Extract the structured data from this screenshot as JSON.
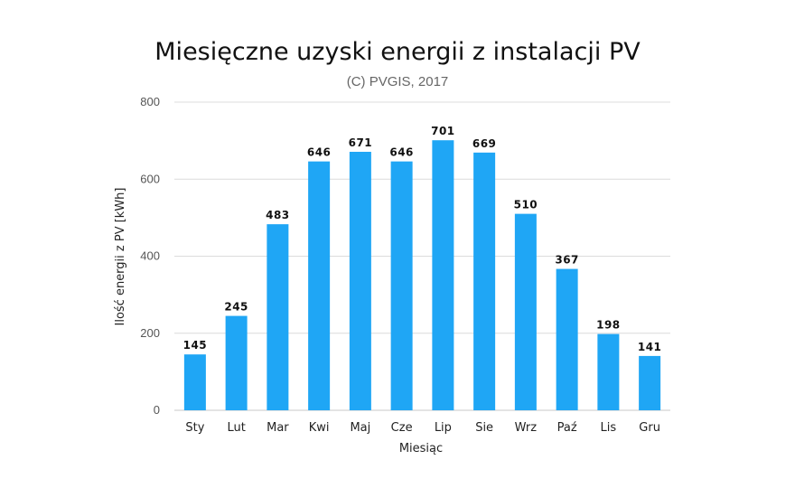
{
  "chart_data": {
    "type": "bar",
    "title": "Miesięczne uzyski energii z instalacji PV",
    "subtitle": "(C) PVGIS, 2017",
    "xlabel": "Miesiąc",
    "ylabel": "Ilość energii z PV [kWh]",
    "ylim": [
      0,
      800
    ],
    "yticks": [
      "0",
      "200",
      "400",
      "600",
      "800"
    ],
    "grid": true,
    "legend": "none",
    "bar_color": "#1fa6f5",
    "categories": [
      "Sty",
      "Lut",
      "Mar",
      "Kwi",
      "Maj",
      "Cze",
      "Lip",
      "Sie",
      "Wrz",
      "Paź",
      "Lis",
      "Gru"
    ],
    "values": [
      145,
      245,
      483,
      646,
      671,
      646,
      701,
      669,
      510,
      367,
      198,
      141
    ],
    "data_labels": [
      "145",
      "245",
      "483",
      "646",
      "671",
      "646",
      "701",
      "669",
      "510",
      "367",
      "198",
      "141"
    ]
  }
}
